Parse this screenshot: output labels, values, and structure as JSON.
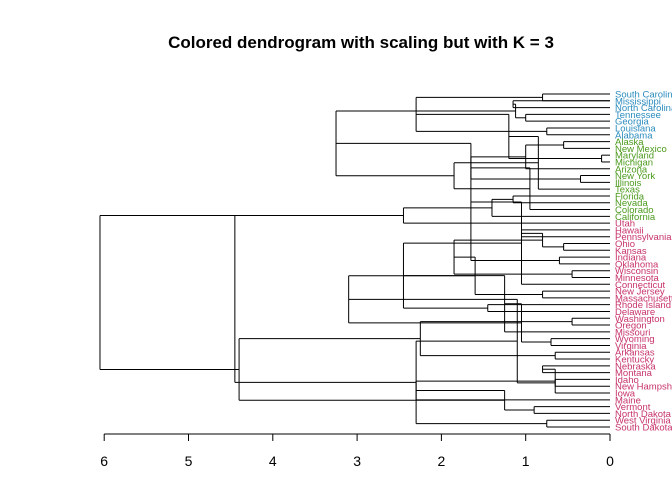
{
  "chart_data": {
    "type": "dendrogram",
    "title": "Colored dendrogram with scaling but with K = 3",
    "orientation": "horizontal",
    "xlim": [
      6,
      0
    ],
    "ticks": [
      "6",
      "5",
      "4",
      "3",
      "2",
      "1",
      "0"
    ],
    "tick_values": [
      6,
      5,
      4,
      3,
      2,
      1,
      0
    ],
    "clusters": [
      {
        "id": 1,
        "color": "#2b8cbe"
      },
      {
        "id": 2,
        "color": "#4d9a1e"
      },
      {
        "id": 3,
        "color": "#c7336b"
      }
    ],
    "leaves": [
      {
        "label": "South Carolina",
        "cluster": 1
      },
      {
        "label": "Mississippi",
        "cluster": 1
      },
      {
        "label": "North Carolina",
        "cluster": 1
      },
      {
        "label": "Tennessee",
        "cluster": 1
      },
      {
        "label": "Georgia",
        "cluster": 1
      },
      {
        "label": "Louisiana",
        "cluster": 1
      },
      {
        "label": "Alabama",
        "cluster": 1
      },
      {
        "label": "Alaska",
        "cluster": 2
      },
      {
        "label": "New Mexico",
        "cluster": 2
      },
      {
        "label": "Maryland",
        "cluster": 2
      },
      {
        "label": "Michigan",
        "cluster": 2
      },
      {
        "label": "Arizona",
        "cluster": 2
      },
      {
        "label": "New York",
        "cluster": 2
      },
      {
        "label": "Illinois",
        "cluster": 2
      },
      {
        "label": "Texas",
        "cluster": 2
      },
      {
        "label": "Florida",
        "cluster": 2
      },
      {
        "label": "Nevada",
        "cluster": 2
      },
      {
        "label": "Colorado",
        "cluster": 2
      },
      {
        "label": "California",
        "cluster": 2
      },
      {
        "label": "Utah",
        "cluster": 3
      },
      {
        "label": "Hawaii",
        "cluster": 3
      },
      {
        "label": "Pennsylvania",
        "cluster": 3
      },
      {
        "label": "Ohio",
        "cluster": 3
      },
      {
        "label": "Kansas",
        "cluster": 3
      },
      {
        "label": "Indiana",
        "cluster": 3
      },
      {
        "label": "Oklahoma",
        "cluster": 3
      },
      {
        "label": "Wisconsin",
        "cluster": 3
      },
      {
        "label": "Minnesota",
        "cluster": 3
      },
      {
        "label": "Connecticut",
        "cluster": 3
      },
      {
        "label": "New Jersey",
        "cluster": 3
      },
      {
        "label": "Massachusetts",
        "cluster": 3
      },
      {
        "label": "Rhode Island",
        "cluster": 3
      },
      {
        "label": "Delaware",
        "cluster": 3
      },
      {
        "label": "Washington",
        "cluster": 3
      },
      {
        "label": "Oregon",
        "cluster": 3
      },
      {
        "label": "Missouri",
        "cluster": 3
      },
      {
        "label": "Wyoming",
        "cluster": 3
      },
      {
        "label": "Virginia",
        "cluster": 3
      },
      {
        "label": "Arkansas",
        "cluster": 3
      },
      {
        "label": "Kentucky",
        "cluster": 3
      },
      {
        "label": "Nebraska",
        "cluster": 3
      },
      {
        "label": "Montana",
        "cluster": 3
      },
      {
        "label": "Idaho",
        "cluster": 3
      },
      {
        "label": "New Hampshire",
        "cluster": 3
      },
      {
        "label": "Iowa",
        "cluster": 3
      },
      {
        "label": "Maine",
        "cluster": 3
      },
      {
        "label": "Vermont",
        "cluster": 3
      },
      {
        "label": "North Dakota",
        "cluster": 3
      },
      {
        "label": "West Virginia",
        "cluster": 3
      },
      {
        "label": "South Dakota",
        "cluster": 3
      }
    ],
    "merges": [
      {
        "a": 0,
        "b": 1,
        "h": 0.8
      },
      {
        "a": "L1",
        "b": "L2",
        "h": 1.15
      },
      {
        "a": "L3",
        "b": "L4",
        "h": 1.0
      },
      {
        "a": "L5",
        "b": "L6",
        "h": 0.75
      },
      {
        "a": "M2",
        "b": "M3",
        "h": 1.12
      },
      {
        "a": "M1",
        "b": "M4",
        "h": 2.3
      },
      {
        "a": "L7",
        "b": "L8",
        "h": 0.55
      },
      {
        "a": "L9",
        "b": "L10",
        "h": 0.1
      },
      {
        "a": "M7",
        "b": "L11",
        "h": 1.0
      },
      {
        "a": "M6",
        "b": "M8",
        "h": 1.2
      },
      {
        "a": "L12",
        "b": "L13",
        "h": 0.35
      },
      {
        "a": "M10",
        "b": "L14",
        "h": 0.85
      },
      {
        "a": "M9",
        "b": "M11",
        "h": 1.65
      },
      {
        "a": "L15",
        "b": "L16",
        "h": 1.15
      },
      {
        "a": "M13",
        "b": "L17",
        "h": 0.95
      },
      {
        "a": "L18",
        "b": "M14",
        "h": 1.4
      },
      {
        "a": "M12",
        "b": "M15",
        "h": 1.85
      },
      {
        "a": "L19",
        "b": "M16",
        "h": 2.45
      },
      {
        "a": "M5",
        "b": "M17",
        "h": 3.25
      },
      {
        "a": "L20",
        "b": "L21",
        "h": 1.05
      },
      {
        "a": "L22",
        "b": "L23",
        "h": 0.55
      },
      {
        "a": "L24",
        "b": "L25",
        "h": 0.6
      },
      {
        "a": "M20",
        "b": "M21",
        "h": 0.8
      },
      {
        "a": "M19",
        "b": "M22",
        "h": 1.65
      },
      {
        "a": "L26",
        "b": "L27",
        "h": 0.45
      },
      {
        "a": "L28",
        "b": "M24",
        "h": 1.05
      },
      {
        "a": "M23",
        "b": "M25",
        "h": 1.85
      },
      {
        "a": "L29",
        "b": "L30",
        "h": 0.8
      },
      {
        "a": "L31",
        "b": "L32",
        "h": 1.45
      },
      {
        "a": "M27",
        "b": "M28",
        "h": 1.6
      },
      {
        "a": "M26",
        "b": "M29",
        "h": 2.45
      },
      {
        "a": "L33",
        "b": "L34",
        "h": 0.45
      },
      {
        "a": "M31",
        "b": "L35",
        "h": 1.25
      },
      {
        "a": "L36",
        "b": "L37",
        "h": 0.7
      },
      {
        "a": "L38",
        "b": "L39",
        "h": 0.65
      },
      {
        "a": "M33",
        "b": "M34",
        "h": 1.05
      },
      {
        "a": "M32",
        "b": "M35",
        "h": 2.25
      },
      {
        "a": "M30",
        "b": "M36",
        "h": 3.1
      },
      {
        "a": "L40",
        "b": "L41",
        "h": 0.8
      },
      {
        "a": "L42",
        "b": "L43",
        "h": 0.65
      },
      {
        "a": "M39",
        "b": "L44",
        "h": 0.65
      },
      {
        "a": "M38",
        "b": "M40",
        "h": 1.1
      },
      {
        "a": "L45",
        "b": "M41",
        "h": 2.3
      },
      {
        "a": "L46",
        "b": "L47",
        "h": 0.9
      },
      {
        "a": "L48",
        "b": "L49",
        "h": 0.75
      },
      {
        "a": "M43",
        "b": "M44",
        "h": 1.25
      },
      {
        "a": "M42",
        "b": "M45",
        "h": 2.3
      },
      {
        "a": "M37",
        "b": "M46",
        "h": 4.4
      },
      {
        "a": "M18",
        "b": "M47",
        "h": 4.45
      },
      {
        "a": "M18",
        "b": "M48",
        "h": 6.05
      }
    ]
  }
}
